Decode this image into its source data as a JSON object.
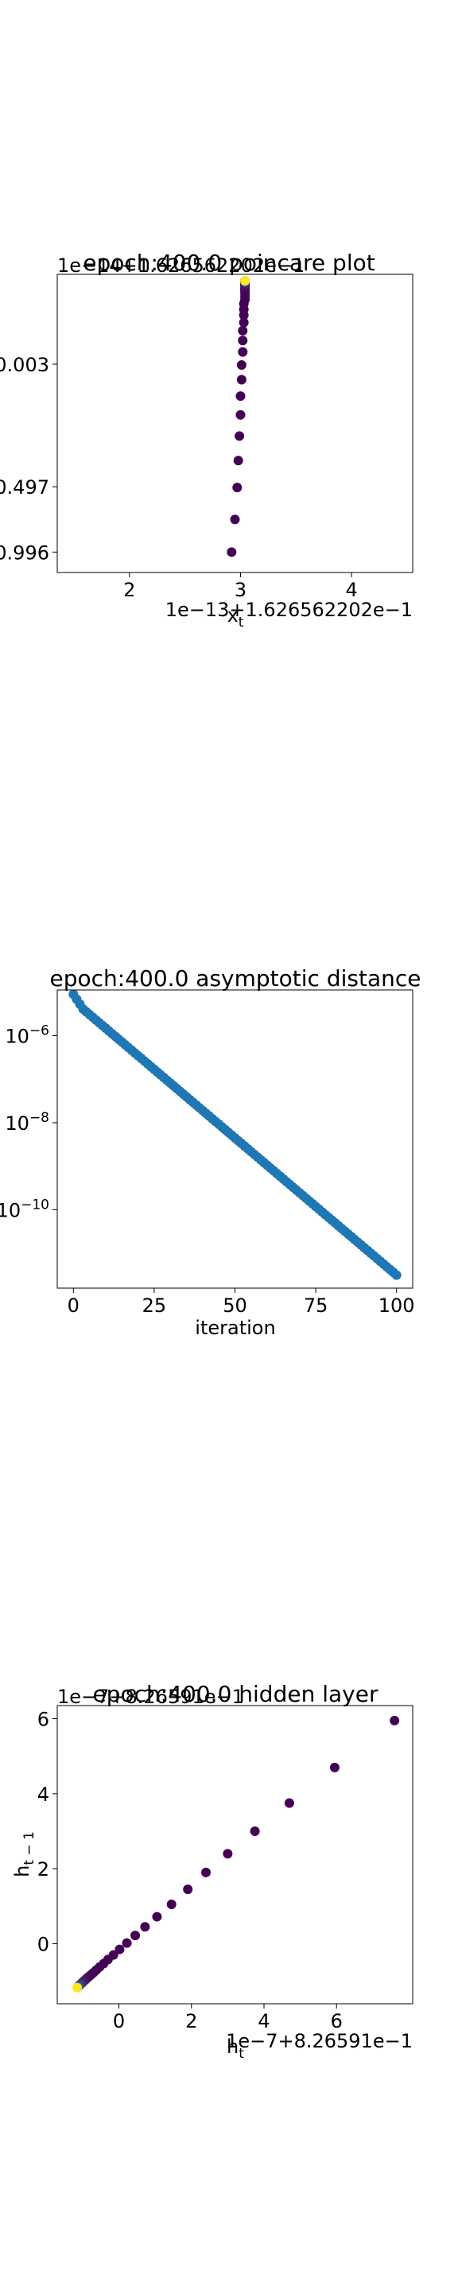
{
  "chart_data": [
    {
      "type": "scatter",
      "title": "epoch:400.0 poincare plot",
      "xlabel": "x_t",
      "ylabel": "",
      "x_offset_text": "1e−13+1.626562202e−1",
      "y_offset_text": "1e−14+1.626562202e−1",
      "x_ticks": [
        "2",
        "3",
        "4"
      ],
      "y_ticks": [
        "0.003",
        "0.497",
        "0.996"
      ],
      "x_range": [
        1.35,
        4.55
      ],
      "y_range": [
        -1.8,
        1.85
      ],
      "colormap": "viridis",
      "x": [
        2.92,
        2.95,
        2.97,
        2.98,
        2.99,
        3.0,
        3.0,
        3.01,
        3.01,
        3.02,
        3.02,
        3.02,
        3.03,
        3.03,
        3.03,
        3.03,
        3.04,
        3.04,
        3.04,
        3.04,
        3.04,
        3.04,
        3.04,
        3.04,
        3.04,
        3.04,
        3.04,
        3.04,
        3.04,
        3.04,
        3.04,
        3.04
      ],
      "y": [
        -1.55,
        -1.15,
        -0.76,
        -0.43,
        -0.13,
        0.13,
        0.36,
        0.56,
        0.74,
        0.9,
        1.04,
        1.16,
        1.26,
        1.35,
        1.42,
        1.49,
        1.54,
        1.58,
        1.62,
        1.65,
        1.67,
        1.69,
        1.71,
        1.72,
        1.73,
        1.74,
        1.75,
        1.75,
        1.76,
        1.76,
        1.77,
        1.77
      ]
    },
    {
      "type": "scatter",
      "title": "epoch:400.0 asymptotic distance",
      "xlabel": "iteration",
      "ylabel": "",
      "x_ticks": [
        "0",
        "25",
        "50",
        "75",
        "100"
      ],
      "y_ticks": [
        {
          "base": "10",
          "exp": "−6",
          "value": -6
        },
        {
          "base": "10",
          "exp": "−8",
          "value": -8
        },
        {
          "base": "10",
          "exp": "−10",
          "value": -10
        }
      ],
      "x_range": [
        -5,
        105
      ],
      "y_log_range": [
        -11.8,
        -4.95
      ],
      "y_scale": "log",
      "color": "#1f77b4",
      "x_start": 0,
      "x_end": 100,
      "y_log_start": -5.2,
      "y_log_end": -11.5
    },
    {
      "type": "scatter",
      "title": "epoch:400.0 hidden layer",
      "xlabel": "h_t",
      "ylabel": "h_{t−1}",
      "x_offset_text": "1e−7+8.26591e−1",
      "y_offset_text": "1e−7+8.26591e−1",
      "x_ticks": [
        "0",
        "2",
        "4",
        "6"
      ],
      "y_ticks": [
        "0",
        "2",
        "4",
        "6"
      ],
      "x_range": [
        -1.7,
        8.1
      ],
      "y_range": [
        -1.6,
        6.35
      ],
      "colormap": "viridis",
      "x": [
        7.6,
        5.95,
        4.7,
        3.75,
        3.0,
        2.4,
        1.9,
        1.45,
        1.05,
        0.72,
        0.45,
        0.22,
        0.02,
        -0.15,
        -0.3,
        -0.42,
        -0.53,
        -0.62,
        -0.7,
        -0.77,
        -0.83,
        -0.88,
        -0.92,
        -0.96,
        -0.99,
        -1.02,
        -1.05,
        -1.07,
        -1.09,
        -1.11,
        -1.13,
        -1.15
      ],
      "y": [
        5.95,
        4.7,
        3.75,
        3.0,
        2.4,
        1.9,
        1.45,
        1.05,
        0.72,
        0.45,
        0.22,
        0.02,
        -0.15,
        -0.3,
        -0.42,
        -0.53,
        -0.62,
        -0.7,
        -0.77,
        -0.83,
        -0.88,
        -0.92,
        -0.96,
        -0.99,
        -1.02,
        -1.05,
        -1.07,
        -1.09,
        -1.11,
        -1.13,
        -1.15,
        -1.17
      ]
    }
  ]
}
